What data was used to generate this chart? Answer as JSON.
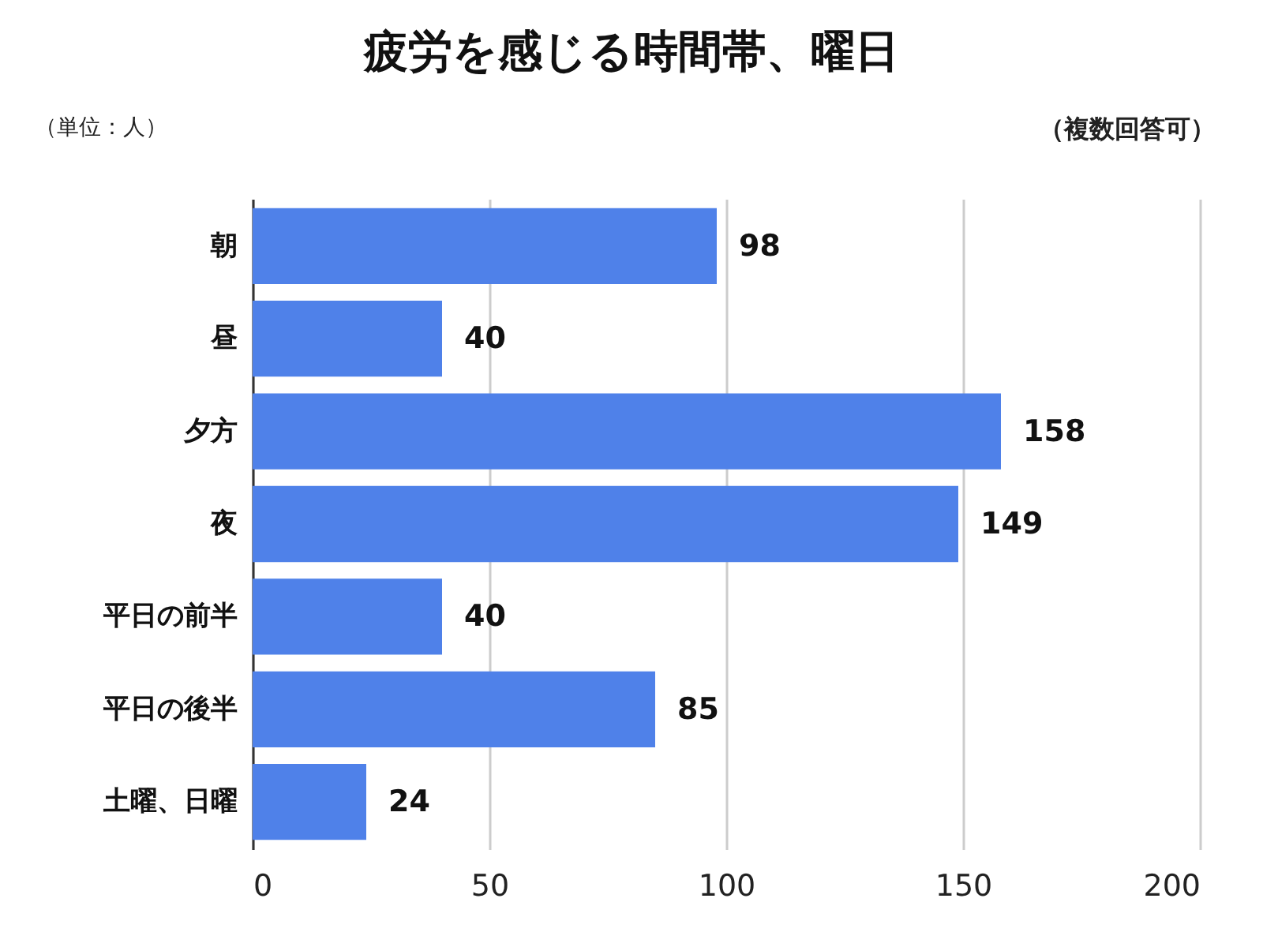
{
  "chart_data": {
    "type": "bar",
    "orientation": "horizontal",
    "title": "疲労を感じる時間帯、曜日",
    "categories": [
      "朝",
      "昼",
      "夕方",
      "夜",
      "平日の前半",
      "平日の後半",
      "土曜、日曜"
    ],
    "values": [
      98,
      40,
      158,
      149,
      40,
      85,
      24
    ],
    "color": "#4f81e9",
    "xlim": [
      0,
      200
    ],
    "xticks": [
      0,
      50,
      100,
      150,
      200
    ],
    "grid": "x",
    "data_labels": true,
    "annotations": [
      "（単位：人）",
      "（複数回答可）"
    ]
  }
}
